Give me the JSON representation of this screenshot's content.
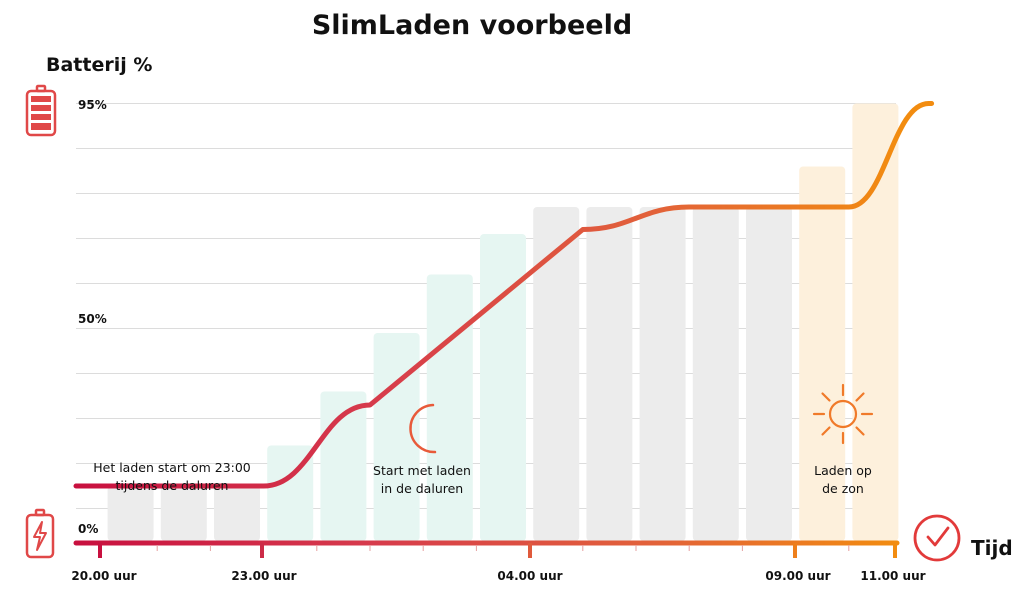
{
  "chart_data": {
    "type": "line",
    "title": "SlimLaden voorbeeld",
    "ylabel": "Batterij %",
    "xlabel": "Tijd",
    "yticks": [
      "95%",
      "50%",
      "0%"
    ],
    "xticks": [
      "20.00 uur",
      "23.00 uur",
      "04.00 uur",
      "09.00 uur",
      "11.00 uur"
    ],
    "series": [
      {
        "x": [
          0,
          3,
          5,
          9,
          11,
          14,
          15.5
        ],
        "y": [
          10,
          10,
          28,
          67,
          72,
          72,
          95
        ]
      }
    ],
    "bars": [
      {
        "phase": "wait",
        "value": 10
      },
      {
        "phase": "wait",
        "value": 10
      },
      {
        "phase": "wait",
        "value": 10
      },
      {
        "phase": "night",
        "value": 19
      },
      {
        "phase": "night",
        "value": 31
      },
      {
        "phase": "night",
        "value": 44
      },
      {
        "phase": "night",
        "value": 57
      },
      {
        "phase": "night",
        "value": 66
      },
      {
        "phase": "idle",
        "value": 72
      },
      {
        "phase": "idle",
        "value": 72
      },
      {
        "phase": "idle",
        "value": 72
      },
      {
        "phase": "idle",
        "value": 72
      },
      {
        "phase": "idle",
        "value": 72
      },
      {
        "phase": "sun",
        "value": 81
      },
      {
        "phase": "sun",
        "value": 95
      }
    ],
    "annotations": [
      {
        "lines": [
          "Het laden start om 23:00",
          "tijdens de daluren"
        ]
      },
      {
        "lines": [
          "Start met laden",
          "in de daluren"
        ],
        "icon": "moon-icon"
      },
      {
        "lines": [
          "Laden op",
          "de zon"
        ],
        "icon": "sun-icon"
      }
    ],
    "colors": {
      "line_start": "#c8103f",
      "line_end": "#f28c10",
      "wait_bar": "#ececec",
      "night_bar": "#e6f6f2",
      "idle_bar": "#ececec",
      "sun_bar": "#fdf0dc",
      "battery_icon": "#e04848",
      "moon_icon": "#e85a3a",
      "sun_icon": "#f07a2a",
      "clock_icon": "#e23a3a",
      "grid": "#dcdcdc"
    },
    "icons": [
      "battery-full-icon",
      "battery-charging-icon",
      "moon-icon",
      "sun-icon",
      "clock-icon"
    ],
    "ylim": [
      0,
      100
    ],
    "grid": true
  }
}
